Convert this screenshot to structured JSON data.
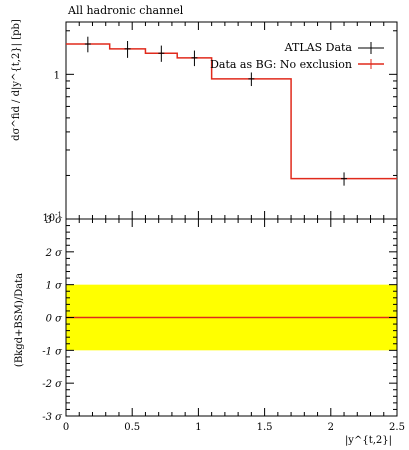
{
  "chart_data": {
    "type": "line",
    "title": "All hadronic channel",
    "xlabel": "|y^{t,2}|",
    "ylabel_top": "dσ^fid / d|y^{t,2}| [pb]",
    "ylabel_bottom": "(Bkgd+BSM)/Data",
    "top_panel": {
      "yscale": "log",
      "ylim": [
        0.1,
        2.3
      ],
      "y_tick_labels": [
        "1",
        "10^-1"
      ],
      "xlim": [
        0,
        2.5
      ],
      "bin_edges": [
        0,
        0.33,
        0.6,
        0.84,
        1.1,
        1.7,
        2.5
      ],
      "series": [
        {
          "name": "ATLAS Data",
          "x": [
            0.165,
            0.465,
            0.72,
            0.97,
            1.4,
            2.1
          ],
          "values": [
            1.62,
            1.5,
            1.4,
            1.3,
            0.93,
            0.19
          ],
          "yerr": [
            0.2,
            0.2,
            0.18,
            0.16,
            0.1,
            0.02
          ],
          "color": "#000000",
          "style": "points"
        },
        {
          "name": "Data as BG: No exclusion",
          "values": [
            1.62,
            1.5,
            1.4,
            1.3,
            0.93,
            0.19
          ],
          "color": "#e02a1c",
          "style": "histogram"
        }
      ],
      "legend_position": "top-right"
    },
    "bottom_panel": {
      "ylim": [
        -3,
        3
      ],
      "y_tick_labels": [
        "-3 σ",
        "-2 σ",
        "-1 σ",
        "0 σ",
        "1 σ",
        "2 σ",
        "3 σ"
      ],
      "band": {
        "low": -1,
        "high": 1,
        "color": "#ffff00"
      },
      "line": {
        "value": 0,
        "color": "#e02a1c"
      }
    },
    "x_tick_labels": [
      "0",
      "0.5",
      "1",
      "1.5",
      "2",
      "2.5"
    ]
  }
}
